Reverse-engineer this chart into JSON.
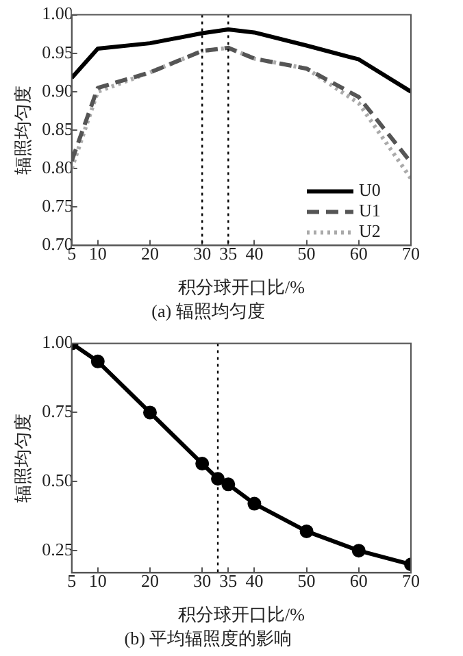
{
  "chart_data": [
    {
      "type": "line",
      "title": "(a) 辐照均匀度",
      "xlabel": "积分球开口比/%",
      "ylabel": "辐照均匀度",
      "x": [
        5,
        10,
        20,
        30,
        35,
        40,
        50,
        60,
        70
      ],
      "series": [
        {
          "name": "U0",
          "color": "#000000",
          "line_style": "solid",
          "values": [
            0.918,
            0.956,
            0.963,
            0.976,
            0.981,
            0.977,
            0.96,
            0.942,
            0.9
          ]
        },
        {
          "name": "U1",
          "color": "#555555",
          "line_style": "dashed",
          "values": [
            0.81,
            0.905,
            0.925,
            0.953,
            0.957,
            0.943,
            0.93,
            0.893,
            0.808
          ]
        },
        {
          "name": "U2",
          "color": "#aaaaaa",
          "line_style": "dotted",
          "values": [
            0.8,
            0.9,
            0.925,
            0.953,
            0.957,
            0.943,
            0.93,
            0.885,
            0.787
          ]
        }
      ],
      "xlim": [
        5,
        70
      ],
      "xticks": [
        5,
        10,
        20,
        30,
        35,
        40,
        50,
        60,
        70
      ],
      "ylim": [
        0.7,
        1.0
      ],
      "yticks": [
        {
          "value": 0.7,
          "label": "0.70"
        },
        {
          "value": 0.75,
          "label": "0.75"
        },
        {
          "value": 0.8,
          "label": "0.80"
        },
        {
          "value": 0.85,
          "label": "0.85"
        },
        {
          "value": 0.9,
          "label": "0.90"
        },
        {
          "value": 0.95,
          "label": "0.95"
        },
        {
          "value": 1.0,
          "label": "1.00"
        }
      ],
      "ref_lines": [
        {
          "axis": "x",
          "value": 30,
          "color": "#000000",
          "line_style": "dotted"
        },
        {
          "axis": "x",
          "value": 35,
          "color": "#000000",
          "line_style": "dotted"
        }
      ],
      "grid": false,
      "legend": "bottom right",
      "marker": "none"
    },
    {
      "type": "line",
      "title": "(b) 平均辐照度的影响",
      "xlabel": "积分球开口比/%",
      "ylabel": "辐照均匀度",
      "x": [
        5,
        10,
        20,
        30,
        33,
        35,
        40,
        50,
        60,
        70
      ],
      "series": [
        {
          "color": "#000000",
          "line_style": "solid",
          "values": [
            1.0,
            0.935,
            0.75,
            0.565,
            0.51,
            0.49,
            0.42,
            0.32,
            0.25,
            0.2
          ]
        }
      ],
      "xlim": [
        5,
        70
      ],
      "xticks": [
        5,
        10,
        20,
        30,
        35,
        40,
        50,
        60,
        70
      ],
      "ylim": [
        0.17,
        1.0
      ],
      "yticks": [
        {
          "value": 0.25,
          "label": "0.25"
        },
        {
          "value": 0.5,
          "label": "0.50"
        },
        {
          "value": 0.75,
          "label": "0.75"
        },
        {
          "value": 1.0,
          "label": "1.00"
        }
      ],
      "ref_lines": [
        {
          "axis": "x",
          "value": 33,
          "color": "#000000",
          "line_style": "dotted"
        }
      ],
      "grid": false,
      "legend": false,
      "marker": "circle"
    }
  ]
}
